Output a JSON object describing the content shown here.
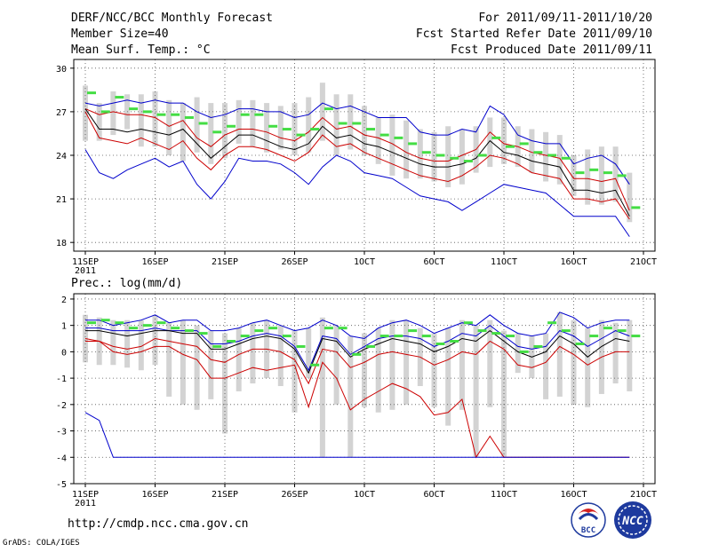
{
  "header": {
    "title": "DERF/NCC/BCC Monthly Forecast",
    "member_size": "Member Size=40",
    "variable": "Mean Surf. Temp.: °C",
    "period": "For 2011/09/11-2011/10/20",
    "started": "Fcst Started Refer Date 2011/09/10",
    "produced": "Fcst Produced Date 2011/09/11"
  },
  "footer": {
    "url": "http://cmdp.ncc.cma.gov.cn",
    "grads": "GrADS: COLA/IGES",
    "logo1_text": "BCC",
    "logo2_text": "NCC"
  },
  "colors": {
    "mean": "#000000",
    "inner": "#cc0000",
    "outer": "#0000cc",
    "bar": "#d3d3d3",
    "marker": "#44dd44",
    "grid": "#555555"
  },
  "x_ticks": [
    {
      "day": 1,
      "label": "11SEP",
      "sub": "2011"
    },
    {
      "day": 6,
      "label": "16SEP"
    },
    {
      "day": 11,
      "label": "21SEP"
    },
    {
      "day": 16,
      "label": "26SEP"
    },
    {
      "day": 21,
      "label": "1OCT"
    },
    {
      "day": 26,
      "label": "6OCT"
    },
    {
      "day": 31,
      "label": "11OCT"
    },
    {
      "day": 36,
      "label": "16OCT"
    },
    {
      "day": 41,
      "label": "21OCT"
    }
  ],
  "chart_data": [
    {
      "type": "line",
      "title": "Mean Surf. Temp.: °C",
      "ylim": [
        17.4,
        30.6
      ],
      "yticks": [
        18,
        21,
        24,
        27,
        30
      ],
      "x_days": [
        1,
        2,
        3,
        4,
        5,
        6,
        7,
        8,
        9,
        10,
        11,
        12,
        13,
        14,
        15,
        16,
        17,
        18,
        19,
        20,
        21,
        22,
        23,
        24,
        25,
        26,
        27,
        28,
        29,
        30,
        31,
        32,
        33,
        34,
        35,
        36,
        37,
        38,
        39,
        40
      ],
      "series": [
        {
          "name": "max",
          "values": [
            24.4,
            22.8,
            22.4,
            23.0,
            23.4,
            23.8,
            23.2,
            23.6,
            22.0,
            21.0,
            22.2,
            23.8,
            23.6,
            23.6,
            23.4,
            22.8,
            22.0,
            23.2,
            24.0,
            23.6,
            22.8,
            22.6,
            22.4,
            21.8,
            21.2,
            21.0,
            20.8,
            20.2,
            20.8,
            21.4,
            22.0,
            21.8,
            21.6,
            21.4,
            20.6,
            19.8,
            19.8,
            19.8,
            19.8,
            18.4
          ]
        },
        {
          "name": "upper_outer",
          "values": [
            27.6,
            27.4,
            27.6,
            27.8,
            27.6,
            27.8,
            27.6,
            27.6,
            27.0,
            26.6,
            26.8,
            27.2,
            27.2,
            27.0,
            27.0,
            26.6,
            26.8,
            27.6,
            27.2,
            27.4,
            27.0,
            26.6,
            26.6,
            26.6,
            25.6,
            25.4,
            25.4,
            25.8,
            25.6,
            27.4,
            26.8,
            25.4,
            25.0,
            24.8,
            24.8,
            23.4,
            23.8,
            24.0,
            23.4,
            22.0
          ]
        },
        {
          "name": "upper_inner",
          "values": [
            27.2,
            26.8,
            27.0,
            26.8,
            26.8,
            26.6,
            26.0,
            26.4,
            25.2,
            24.6,
            25.4,
            25.8,
            25.8,
            25.6,
            25.2,
            25.0,
            25.6,
            26.6,
            25.8,
            26.0,
            25.4,
            25.2,
            24.8,
            24.2,
            23.8,
            23.6,
            23.6,
            24.0,
            24.4,
            25.6,
            24.8,
            24.6,
            24.2,
            24.0,
            23.8,
            22.4,
            22.4,
            22.2,
            22.4,
            20.2
          ]
        },
        {
          "name": "mean",
          "values": [
            27.2,
            25.8,
            25.8,
            25.6,
            25.8,
            25.6,
            25.4,
            25.8,
            24.8,
            23.8,
            24.6,
            25.4,
            25.4,
            25.0,
            24.6,
            24.4,
            24.8,
            26.0,
            25.2,
            25.4,
            24.8,
            24.6,
            24.2,
            23.8,
            23.4,
            23.2,
            23.2,
            23.4,
            23.8,
            25.0,
            24.2,
            24.0,
            23.6,
            23.4,
            23.2,
            21.6,
            21.6,
            21.4,
            21.6,
            19.8
          ]
        },
        {
          "name": "lower_inner",
          "values": [
            27.0,
            25.2,
            25.0,
            24.8,
            25.2,
            24.8,
            24.4,
            25.0,
            23.8,
            23.0,
            24.0,
            24.6,
            24.6,
            24.4,
            24.0,
            23.6,
            24.2,
            25.4,
            24.6,
            24.8,
            24.2,
            23.8,
            23.4,
            23.0,
            22.6,
            22.4,
            22.2,
            22.6,
            23.2,
            24.0,
            23.8,
            23.4,
            22.8,
            22.6,
            22.4,
            21.0,
            21.0,
            20.8,
            21.0,
            19.6
          ]
        }
      ],
      "bars": {
        "low": [
          25.0,
          25.0,
          25.4,
          25.8,
          24.6,
          24.6,
          24.0,
          23.6,
          24.2,
          23.4,
          23.8,
          24.8,
          24.6,
          24.2,
          24.4,
          24.0,
          24.2,
          25.0,
          24.0,
          24.4,
          24.0,
          23.4,
          22.6,
          22.4,
          22.4,
          22.2,
          21.8,
          22.0,
          22.8,
          23.2,
          23.4,
          23.2,
          22.8,
          22.2,
          22.0,
          21.2,
          20.6,
          20.6,
          20.8,
          19.4
        ],
        "high": [
          28.8,
          27.6,
          28.4,
          28.2,
          28.2,
          28.4,
          27.8,
          27.6,
          28.0,
          27.6,
          27.6,
          27.8,
          27.8,
          27.6,
          27.4,
          27.6,
          28.0,
          29.0,
          28.2,
          28.2,
          27.4,
          26.6,
          26.8,
          26.4,
          25.8,
          25.6,
          26.0,
          25.8,
          26.0,
          26.6,
          26.6,
          26.0,
          25.8,
          25.6,
          25.4,
          24.0,
          24.4,
          24.6,
          24.6,
          22.8
        ]
      },
      "markers": [
        28.3,
        27.0,
        28.0,
        27.2,
        27.0,
        26.8,
        26.8,
        26.6,
        26.2,
        25.6,
        26.0,
        26.8,
        26.8,
        26.0,
        25.8,
        25.4,
        25.8,
        27.2,
        26.2,
        26.2,
        25.8,
        25.4,
        25.2,
        24.8,
        24.2,
        24.0,
        23.8,
        23.6,
        24.0,
        25.2,
        24.6,
        24.8,
        24.2,
        24.0,
        23.8,
        22.8,
        23.0,
        22.8,
        22.6,
        20.4
      ]
    },
    {
      "type": "line",
      "title": "Prec.: log(mm/d)",
      "ylim": [
        -5,
        2.2
      ],
      "yticks": [
        -5,
        -4,
        -3,
        -2,
        -1,
        0,
        1,
        2
      ],
      "x_days": [
        1,
        2,
        3,
        4,
        5,
        6,
        7,
        8,
        9,
        10,
        11,
        12,
        13,
        14,
        15,
        16,
        17,
        18,
        19,
        20,
        21,
        22,
        23,
        24,
        25,
        26,
        27,
        28,
        29,
        30,
        31,
        32,
        33,
        34,
        35,
        36,
        37,
        38,
        39,
        40
      ],
      "series": [
        {
          "name": "max",
          "values": [
            1.2,
            1.2,
            1.0,
            1.1,
            1.2,
            1.4,
            1.1,
            1.2,
            1.2,
            0.8,
            0.8,
            0.9,
            1.1,
            1.2,
            1.0,
            0.8,
            0.9,
            1.2,
            1.0,
            0.6,
            0.5,
            0.9,
            1.1,
            1.2,
            1.0,
            0.7,
            0.9,
            1.1,
            1.0,
            1.4,
            1.0,
            0.7,
            0.6,
            0.7,
            1.5,
            1.3,
            0.9,
            1.1,
            1.2,
            1.2
          ]
        },
        {
          "name": "upper_outer",
          "values": [
            0.9,
            0.9,
            0.8,
            0.8,
            0.8,
            0.9,
            0.8,
            0.8,
            0.8,
            0.3,
            0.3,
            0.4,
            0.6,
            0.7,
            0.6,
            0.2,
            -0.7,
            0.6,
            0.5,
            -0.1,
            0.2,
            0.5,
            0.6,
            0.6,
            0.5,
            0.2,
            0.4,
            0.7,
            0.6,
            1.0,
            0.6,
            0.2,
            0.1,
            0.2,
            0.8,
            0.6,
            0.2,
            0.5,
            0.8,
            0.6
          ]
        },
        {
          "name": "mean",
          "values": [
            0.8,
            0.8,
            0.7,
            0.6,
            0.7,
            0.8,
            0.8,
            0.7,
            0.7,
            0.1,
            0.1,
            0.3,
            0.5,
            0.6,
            0.5,
            0.1,
            -0.8,
            0.5,
            0.4,
            -0.2,
            0.1,
            0.3,
            0.5,
            0.4,
            0.3,
            0.0,
            0.2,
            0.5,
            0.4,
            0.8,
            0.4,
            0.0,
            -0.2,
            0.0,
            0.6,
            0.3,
            -0.2,
            0.2,
            0.5,
            0.4
          ]
        },
        {
          "name": "lower_inner",
          "values": [
            0.5,
            0.4,
            0.2,
            0.1,
            0.2,
            0.5,
            0.4,
            0.3,
            0.2,
            -0.3,
            -0.4,
            -0.1,
            0.1,
            0.1,
            0.0,
            -0.3,
            -1.2,
            0.1,
            0.0,
            -0.6,
            -0.4,
            -0.1,
            0.0,
            -0.1,
            -0.2,
            -0.5,
            -0.3,
            0.0,
            -0.1,
            0.4,
            0.1,
            -0.5,
            -0.6,
            -0.4,
            0.2,
            -0.1,
            -0.5,
            -0.2,
            0.0,
            0.0
          ]
        },
        {
          "name": "low_red",
          "values": [
            0.4,
            0.4,
            0.0,
            -0.1,
            0.0,
            0.2,
            0.2,
            -0.1,
            -0.3,
            -1.0,
            -1.0,
            -0.8,
            -0.6,
            -0.7,
            -0.6,
            -0.5,
            -2.1,
            -0.4,
            -1.0,
            -2.2,
            -1.8,
            -1.5,
            -1.2,
            -1.4,
            -1.7,
            -2.4,
            -2.3,
            -1.8,
            -4.0,
            -3.2,
            -4.0,
            -4.0,
            -4.0,
            -4.0,
            -4.0,
            -4.0,
            -4.0,
            -4.0,
            -4.0,
            -4.0
          ]
        },
        {
          "name": "min",
          "values": [
            -2.3,
            -2.6,
            -4.0,
            -4.0,
            -4.0,
            -4.0,
            -4.0,
            -4.0,
            -4.0,
            -4.0,
            -4.0,
            -4.0,
            -4.0,
            -4.0,
            -4.0,
            -4.0,
            -4.0,
            -4.0,
            -4.0,
            -4.0,
            -4.0,
            -4.0,
            -4.0,
            -4.0,
            -4.0,
            -4.0,
            -4.0,
            -4.0,
            -4.0,
            -4.0,
            -4.0,
            -4.0,
            -4.0,
            -4.0,
            -4.0,
            -4.0,
            -4.0,
            -4.0,
            -4.0,
            -4.0
          ]
        }
      ],
      "bars": {
        "low": [
          -0.4,
          -0.5,
          -0.5,
          -0.6,
          -0.7,
          -0.5,
          -1.7,
          -2.0,
          -2.2,
          -1.8,
          -3.1,
          -1.5,
          -1.2,
          -1.0,
          -1.3,
          -2.3,
          -1.0,
          -4.0,
          -2.0,
          -4.0,
          -2.1,
          -2.3,
          -2.2,
          -2.0,
          -1.3,
          -2.1,
          -2.8,
          -2.2,
          -4.0,
          -2.1,
          -4.0,
          -0.8,
          -1.0,
          -1.8,
          -1.7,
          -2.0,
          -2.1,
          -1.6,
          -1.2,
          -1.5
        ],
        "high": [
          1.4,
          1.3,
          1.2,
          1.2,
          1.2,
          1.4,
          1.1,
          1.2,
          1.0,
          0.8,
          0.7,
          0.9,
          1.1,
          1.2,
          1.0,
          0.8,
          0.9,
          1.3,
          1.0,
          0.6,
          0.7,
          0.9,
          1.2,
          1.2,
          0.9,
          0.7,
          0.9,
          1.2,
          1.0,
          1.2,
          0.8,
          0.7,
          0.6,
          0.7,
          1.5,
          1.2,
          0.9,
          1.2,
          1.1,
          1.2
        ]
      },
      "markers": [
        1.1,
        1.2,
        1.1,
        0.9,
        1.0,
        1.1,
        0.9,
        0.8,
        0.7,
        0.2,
        0.4,
        0.6,
        0.8,
        0.9,
        0.6,
        0.2,
        -0.5,
        0.9,
        0.9,
        -0.1,
        0.2,
        0.6,
        0.6,
        0.8,
        0.6,
        0.3,
        0.4,
        1.1,
        0.8,
        0.7,
        0.6,
        0.0,
        0.2,
        1.1,
        0.8,
        0.3,
        0.6,
        0.9,
        0.8,
        0.6
      ]
    }
  ]
}
